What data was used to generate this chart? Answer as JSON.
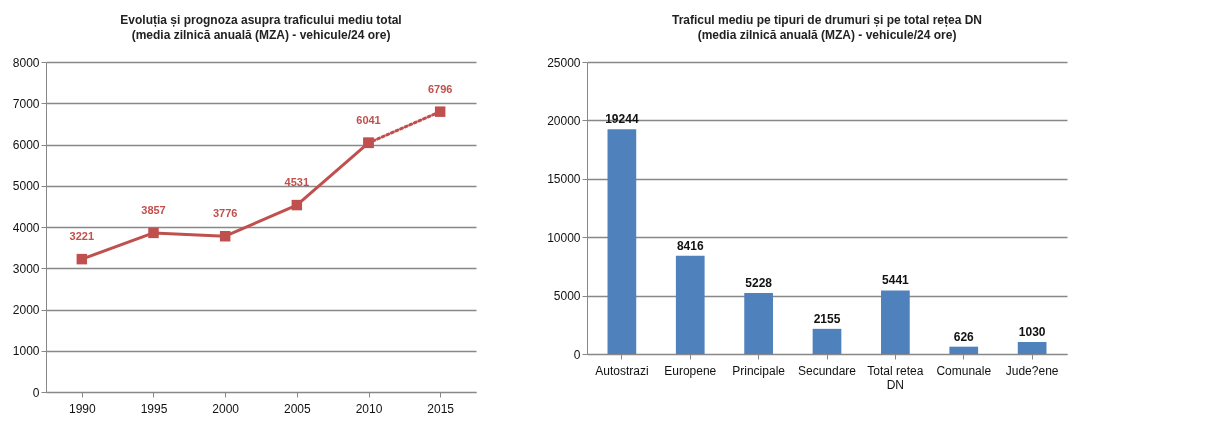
{
  "chart_data": [
    {
      "type": "line",
      "title": "Evoluția  și prognoza asupra traficului mediu total",
      "subtitle": "(media zilnică anuală (MZA) - vehicule/24 ore)",
      "categories": [
        "1990",
        "1995",
        "2000",
        "2005",
        "2010",
        "2015"
      ],
      "series": [
        {
          "color": "#c0504d",
          "line_style": "solid",
          "values": [
            3221,
            3857,
            3776,
            4531,
            6041,
            null
          ],
          "value_labels": [
            "3221",
            "3857",
            "3776",
            "4531",
            "6041",
            null
          ]
        },
        {
          "color": "#c0504d",
          "line_style": "dotted",
          "values": [
            null,
            null,
            null,
            null,
            6041,
            6796
          ],
          "value_labels": [
            null,
            null,
            null,
            null,
            null,
            "6796"
          ]
        }
      ],
      "ylim": [
        0,
        8000
      ],
      "yticks": [
        0,
        1000,
        2000,
        3000,
        4000,
        5000,
        6000,
        7000,
        8000
      ],
      "grid": "y",
      "marker": "square"
    },
    {
      "type": "bar",
      "title": "Traficul mediu pe tipuri de drumuri și pe total rețea DN",
      "subtitle": "(media zilnică anuală (MZA) - vehicule/24 ore)",
      "categories": [
        "Autostrazi",
        "Europene",
        "Principale",
        "Secundare",
        "Total retea DN",
        "Comunale",
        "Jude?ene"
      ],
      "values": [
        19244,
        8416,
        5228,
        2155,
        5441,
        626,
        1030
      ],
      "color": "#4f81bd",
      "ylim": [
        0,
        25000
      ],
      "yticks": [
        0,
        5000,
        10000,
        15000,
        20000,
        25000
      ],
      "grid": "y",
      "data_labels": true
    }
  ]
}
